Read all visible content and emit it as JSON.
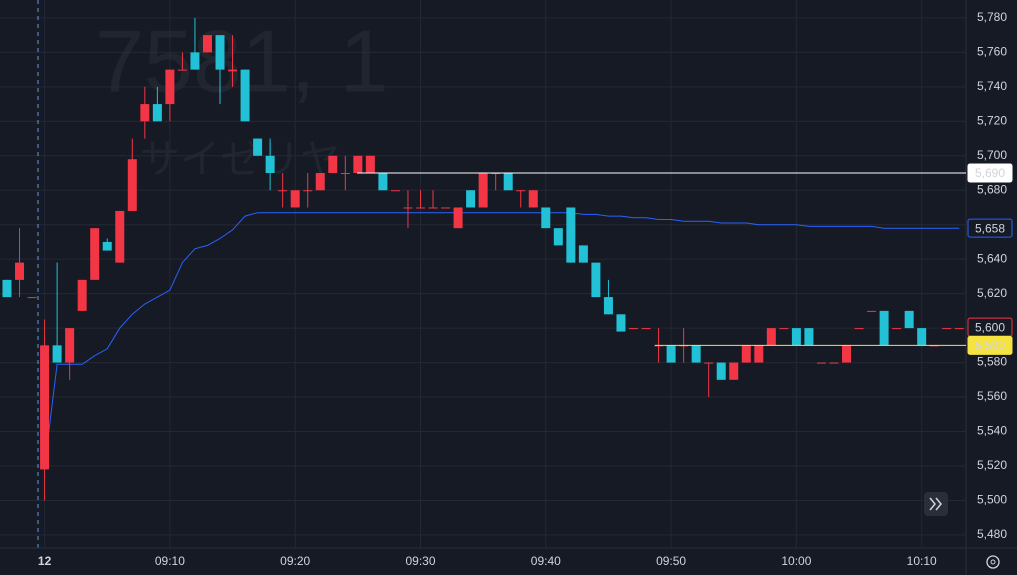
{
  "chart_data": {
    "type": "candlestick",
    "watermark": "7581, 1",
    "watermark_subtitle": "サイゼリヤ",
    "up_color": "#f23645",
    "down_color": "#22c1d6",
    "grid": true,
    "ylim": [
      5472.4,
      5790.4
    ],
    "yticks": [
      {
        "value": 5480,
        "label": "5,480"
      },
      {
        "value": 5500,
        "label": "5,500"
      },
      {
        "value": 5520,
        "label": "5,520"
      },
      {
        "value": 5540,
        "label": "5,540"
      },
      {
        "value": 5560,
        "label": "5,560"
      },
      {
        "value": 5580,
        "label": "5,580"
      },
      {
        "value": 5600,
        "label": "5,600"
      },
      {
        "value": 5620,
        "label": "5,620"
      },
      {
        "value": 5640,
        "label": "5,640"
      },
      {
        "value": 5660,
        "label": "5,660"
      },
      {
        "value": 5680,
        "label": "5,680"
      },
      {
        "value": 5700,
        "label": "5,700"
      },
      {
        "value": 5720,
        "label": "5,720"
      },
      {
        "value": 5740,
        "label": "5,740"
      },
      {
        "value": 5760,
        "label": "5,760"
      },
      {
        "value": 5780,
        "label": "5,780"
      }
    ],
    "categories": [
      null,
      null,
      null,
      "12",
      null,
      null,
      null,
      null,
      null,
      null,
      null,
      null,
      null,
      "09:10",
      null,
      null,
      null,
      null,
      null,
      null,
      null,
      null,
      null,
      "09:20",
      null,
      null,
      null,
      null,
      null,
      null,
      null,
      null,
      null,
      "09:30",
      null,
      null,
      null,
      null,
      null,
      null,
      null,
      null,
      null,
      "09:40",
      null,
      null,
      null,
      null,
      null,
      null,
      null,
      null,
      null,
      "09:50",
      null,
      null,
      null,
      null,
      null,
      null,
      null,
      null,
      null,
      "10:00",
      null,
      null,
      null,
      null,
      null,
      null,
      null,
      null,
      null,
      "10:10",
      null,
      null,
      null
    ],
    "open": [
      5628,
      5628,
      5618,
      5518,
      5590,
      5580,
      5610,
      5628,
      5650,
      5638,
      5668,
      5720,
      5730,
      5730,
      5750,
      5760,
      5760,
      5770,
      5749,
      5750,
      5710,
      5700,
      5680,
      5670,
      5680,
      5680,
      5690,
      5690,
      5690,
      5690,
      5690,
      5680,
      5670,
      5670,
      5670,
      5670,
      5658,
      5680,
      5670,
      5690,
      5690,
      5680,
      5670,
      5670,
      5658,
      5670,
      5648,
      5638,
      5618,
      5608,
      5600,
      5600,
      5590,
      5590,
      5590,
      5590,
      5580,
      5580,
      5570,
      5580,
      5580,
      5590,
      5600,
      5600,
      5600,
      5580,
      5580,
      5580,
      5600,
      5610,
      5610,
      5600,
      5610,
      5600,
      5590,
      5600,
      5600
    ],
    "high": [
      5628,
      5658,
      5618,
      5605,
      5638,
      5600,
      5628,
      5658,
      5652,
      5668,
      5710,
      5740,
      5740,
      5750,
      5760,
      5780,
      5770,
      5770,
      5770,
      5750,
      5710,
      5710,
      5690,
      5680,
      5690,
      5690,
      5700,
      5700,
      5700,
      5700,
      5690,
      5680,
      5680,
      5680,
      5680,
      5670,
      5670,
      5680,
      5690,
      5690,
      5690,
      5680,
      5680,
      5670,
      5658,
      5670,
      5648,
      5638,
      5628,
      5608,
      5600,
      5600,
      5600,
      5590,
      5600,
      5590,
      5580,
      5580,
      5580,
      5590,
      5590,
      5600,
      5600,
      5600,
      5600,
      5580,
      5580,
      5590,
      5600,
      5610,
      5610,
      5600,
      5610,
      5600,
      5590,
      5600,
      5600
    ],
    "low": [
      5618,
      5618,
      5618,
      5500,
      5580,
      5570,
      5610,
      5628,
      5645,
      5638,
      5668,
      5710,
      5720,
      5720,
      5750,
      5750,
      5760,
      5730,
      5740,
      5720,
      5700,
      5680,
      5670,
      5670,
      5670,
      5680,
      5690,
      5680,
      5690,
      5690,
      5680,
      5680,
      5658,
      5670,
      5670,
      5670,
      5658,
      5670,
      5670,
      5680,
      5680,
      5670,
      5670,
      5658,
      5648,
      5638,
      5638,
      5618,
      5608,
      5598,
      5600,
      5600,
      5580,
      5580,
      5580,
      5580,
      5560,
      5570,
      5570,
      5580,
      5580,
      5590,
      5600,
      5590,
      5590,
      5580,
      5580,
      5580,
      5600,
      5610,
      5590,
      5600,
      5600,
      5590,
      5590,
      5600,
      5600
    ],
    "close": [
      5618,
      5638,
      5618,
      5590,
      5580,
      5600,
      5628,
      5658,
      5645,
      5668,
      5698,
      5730,
      5720,
      5750,
      5750,
      5750,
      5770,
      5750,
      5750,
      5720,
      5700,
      5690,
      5680,
      5680,
      5680,
      5690,
      5700,
      5690,
      5700,
      5700,
      5680,
      5680,
      5670,
      5670,
      5670,
      5670,
      5670,
      5670,
      5690,
      5690,
      5680,
      5680,
      5680,
      5658,
      5648,
      5638,
      5638,
      5618,
      5608,
      5598,
      5600,
      5600,
      5590,
      5580,
      5590,
      5580,
      5580,
      5570,
      5580,
      5590,
      5590,
      5600,
      5600,
      5590,
      5590,
      5580,
      5580,
      5590,
      5600,
      5610,
      5590,
      5600,
      5600,
      5590,
      5590,
      5600,
      5600
    ],
    "vwap": {
      "color": "#2962ff",
      "values": [
        null,
        null,
        null,
        5520,
        5579,
        5579,
        5579,
        5584,
        5588,
        5600,
        5608,
        5614,
        5618,
        5622,
        5638,
        5646,
        5648,
        5652,
        5657,
        5665,
        5667,
        5667,
        5667,
        5667,
        5667,
        5667,
        5667,
        5667,
        5667,
        5667,
        5667,
        5667,
        5667,
        5667,
        5667,
        5667,
        5667,
        5667,
        5667,
        5667,
        5667,
        5667,
        5667,
        5667,
        5667,
        5667,
        5666,
        5666,
        5665,
        5665,
        5664,
        5664,
        5663,
        5663,
        5662,
        5662,
        5662,
        5661,
        5661,
        5661,
        5660,
        5660,
        5660,
        5660,
        5659,
        5659,
        5659,
        5659,
        5659,
        5659,
        5658,
        5658,
        5658,
        5658,
        5658,
        5658,
        5658
      ],
      "last": {
        "value": 5658,
        "label": "5,658"
      }
    },
    "price_lines": [
      {
        "value": 5690,
        "label": "5,690",
        "color": "#ffffff"
      },
      {
        "value": 5590,
        "label": "5,590",
        "color": "#f5e342"
      }
    ],
    "last_price": {
      "value": 5600,
      "label": "5,600"
    }
  }
}
